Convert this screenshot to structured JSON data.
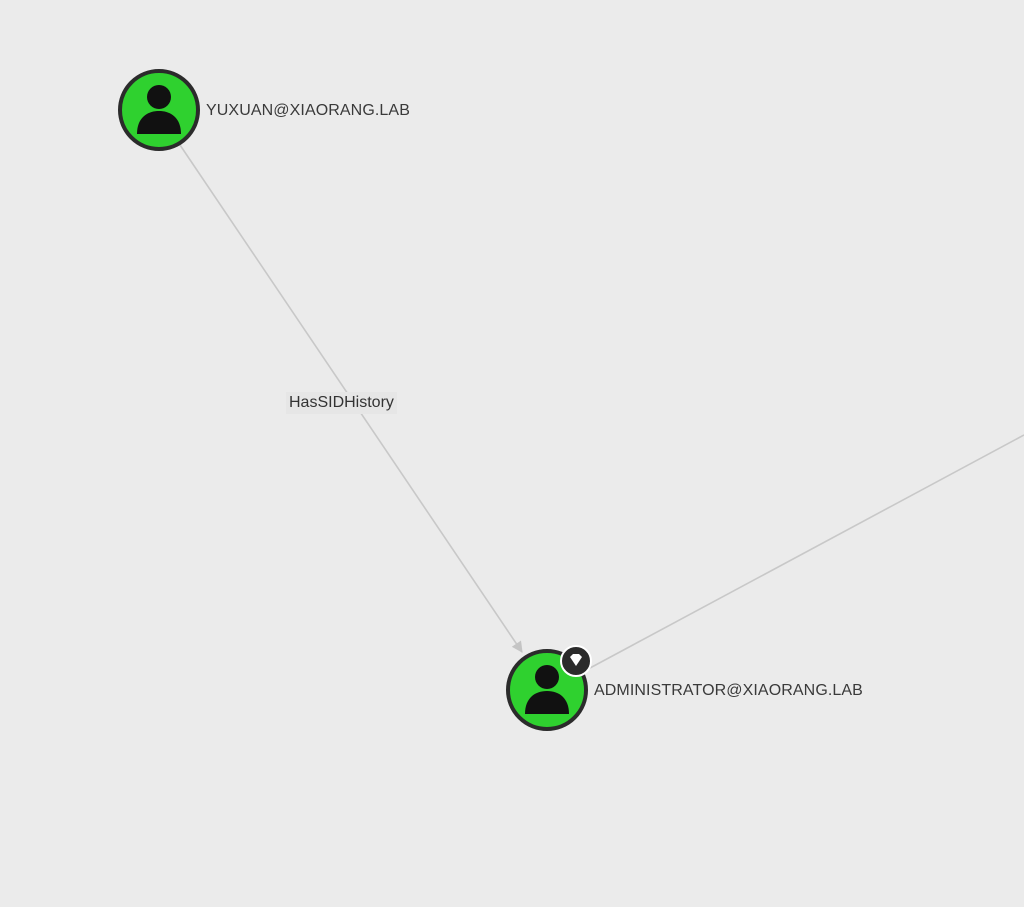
{
  "graph": {
    "nodes": [
      {
        "id": "yuxuan",
        "label": "YUXUAN@XIAORANG.LAB",
        "type": "user",
        "icon": "user-icon",
        "fill": "#2fd12f",
        "highvalue": false
      },
      {
        "id": "administrator",
        "label": "ADMINISTRATOR@XIAORANG.LAB",
        "type": "user",
        "icon": "user-icon",
        "fill": "#2fd12f",
        "highvalue": true,
        "badge_icon": "diamond-icon"
      }
    ],
    "edges": [
      {
        "from": "yuxuan",
        "to": "administrator",
        "label": "HasSIDHistory"
      }
    ]
  },
  "colors": {
    "background": "#ebebeb",
    "node_fill": "#2fd12f",
    "node_stroke": "#2b2b2b",
    "edge": "#c4c4c4",
    "icon": "#111111"
  }
}
